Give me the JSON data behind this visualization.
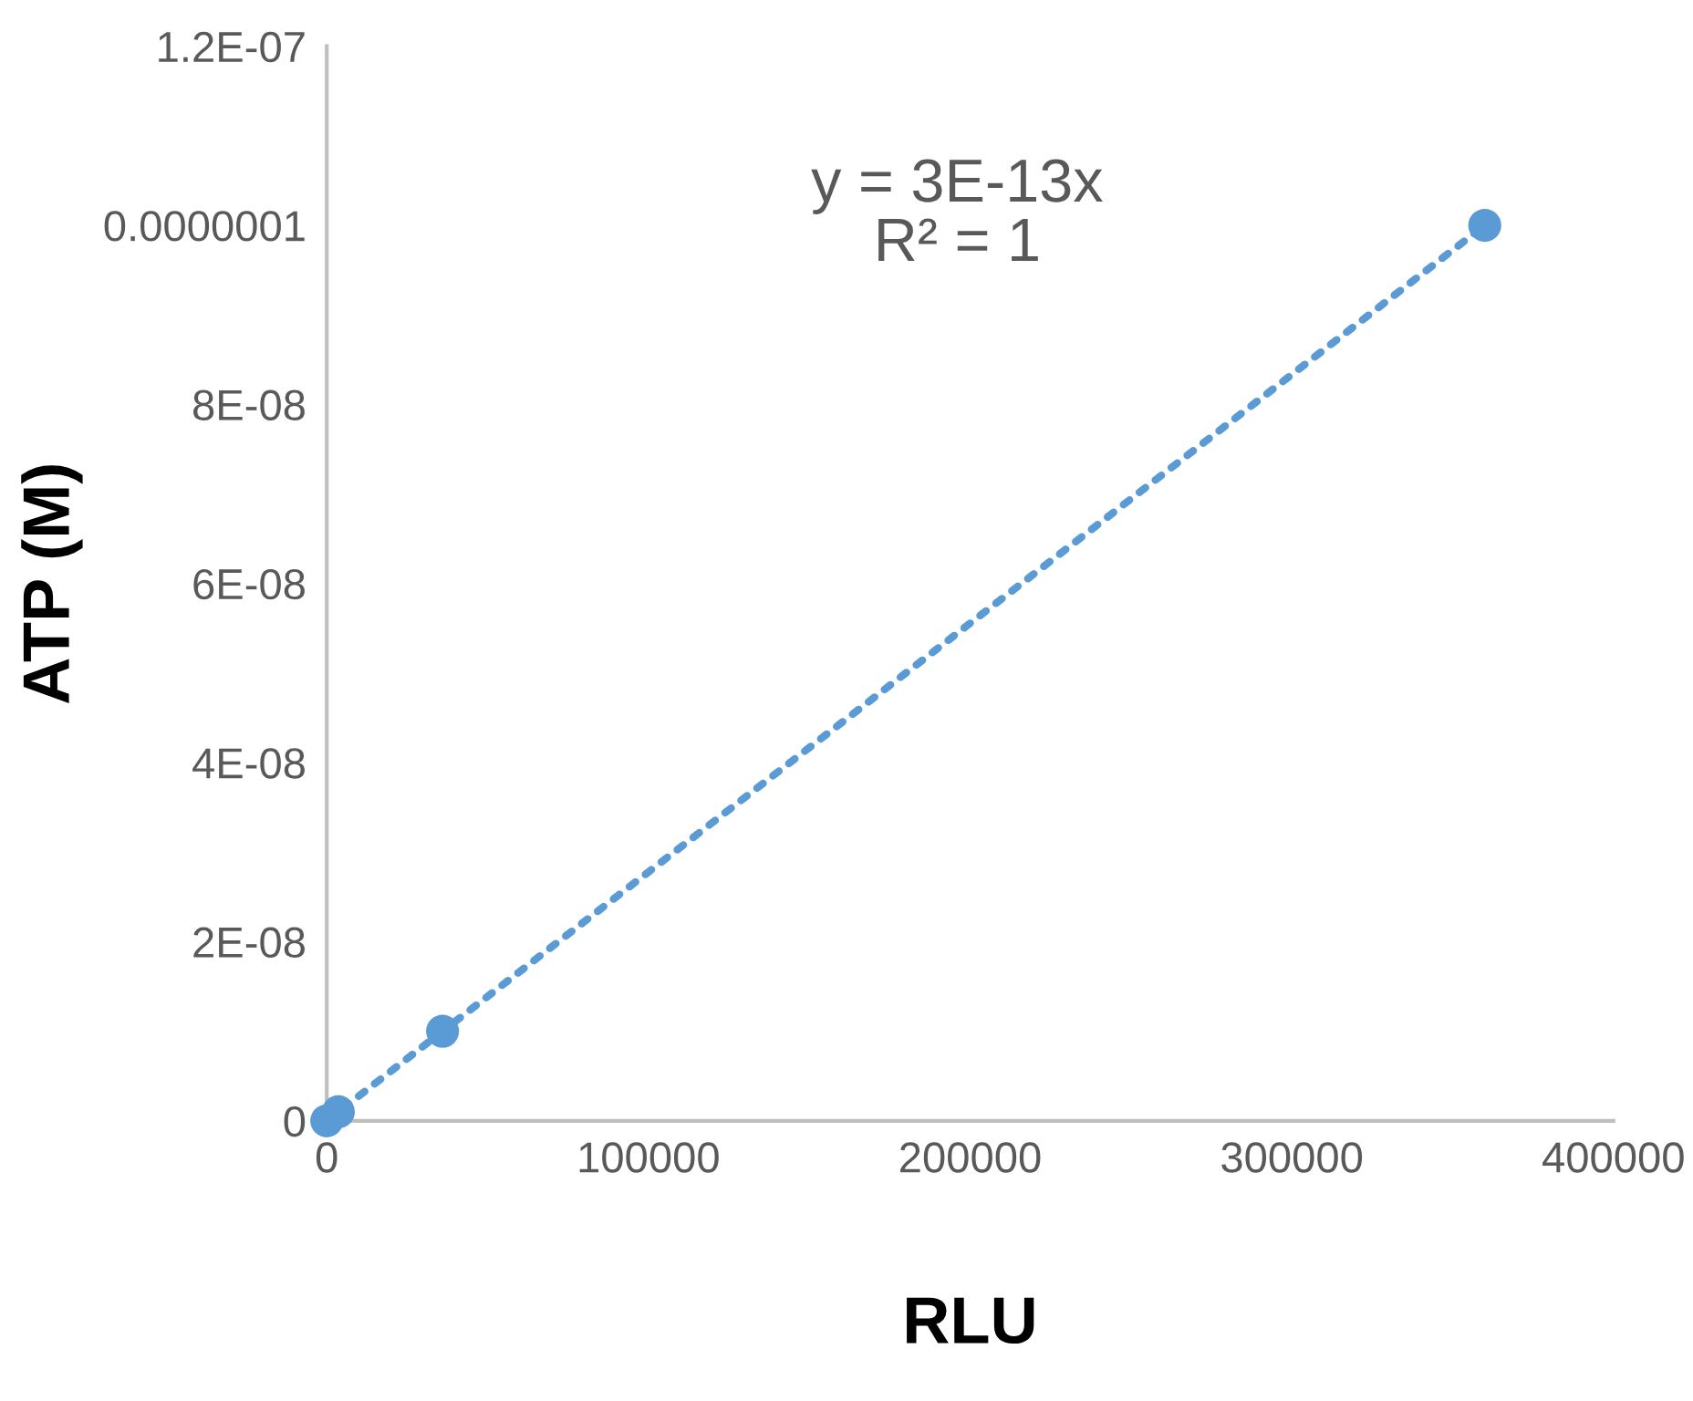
{
  "chart_data": {
    "type": "scatter",
    "xlabel": "RLU",
    "ylabel": "ATP (M)",
    "xlim": [
      0,
      400000
    ],
    "xticks": [
      0,
      100000,
      200000,
      300000,
      400000
    ],
    "ylim": [
      0,
      1.2e-07
    ],
    "yticks": [
      0,
      {
        "value": 2e-08,
        "label": "2E-08"
      },
      {
        "value": 4e-08,
        "label": "4E-08"
      },
      {
        "value": 6e-08,
        "label": "6E-08"
      },
      {
        "value": 8e-08,
        "label": "8E-08"
      },
      {
        "value": 1e-07,
        "label": "0.0000001"
      },
      {
        "value": 1.2e-07,
        "label": "1.2E-07"
      }
    ],
    "grid": false,
    "series": [
      {
        "color": "#5b9bd5",
        "marker": "circle",
        "x": [
          0,
          3600,
          36000,
          360000
        ],
        "values": [
          0,
          1e-09,
          1e-08,
          1e-07
        ]
      },
      {
        "type": "line",
        "color": "#5b9bd5",
        "line_style": "dotted",
        "marker": "none",
        "x": [
          0,
          360000
        ],
        "values": [
          0,
          1e-07
        ]
      }
    ],
    "annotations": [
      "y = 3E-13x",
      "R² = 1"
    ]
  }
}
